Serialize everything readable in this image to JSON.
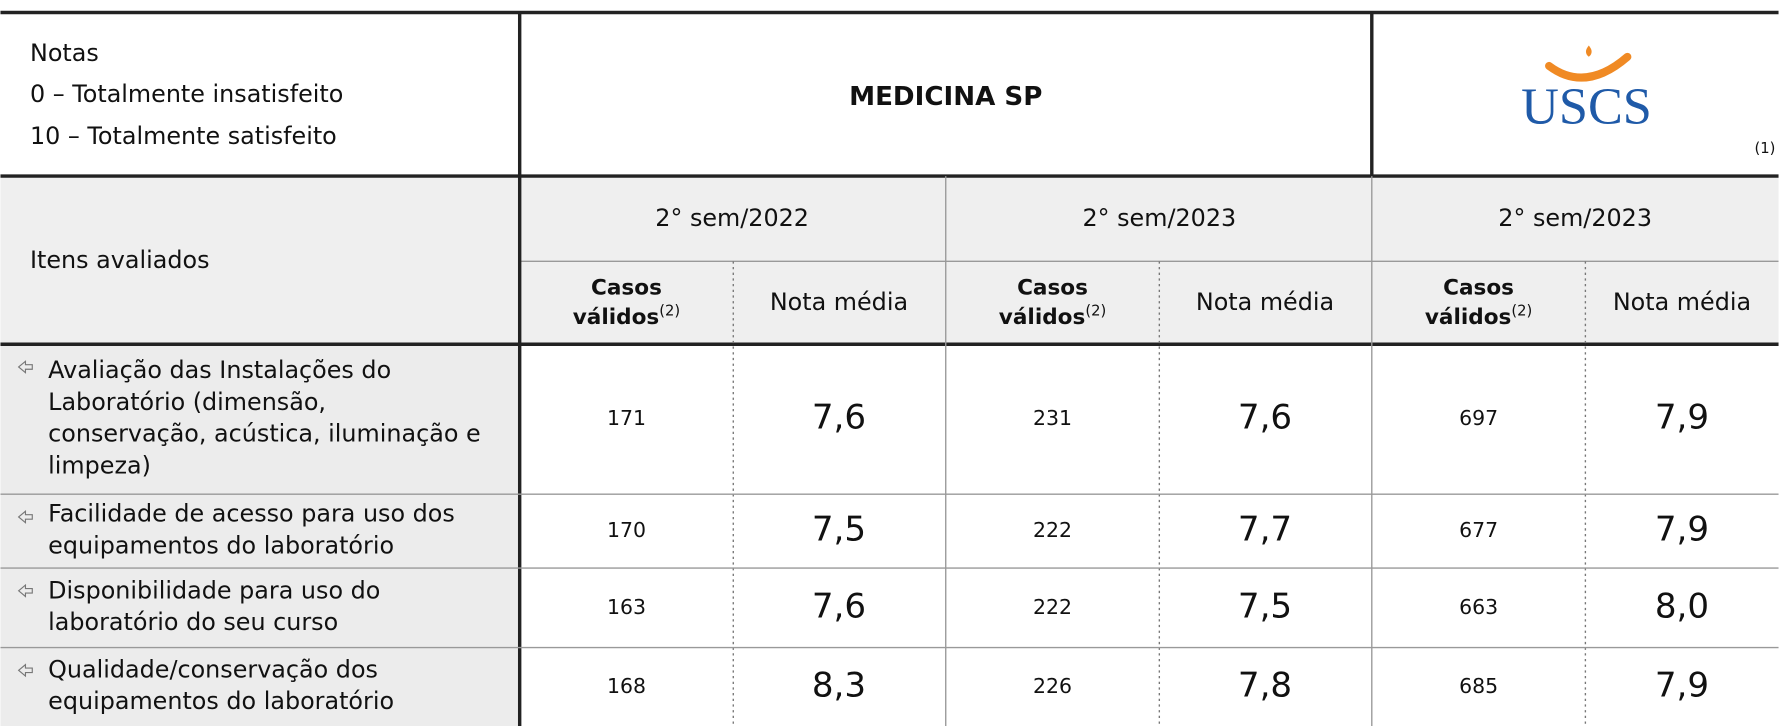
{
  "header": {
    "notes": [
      "Notas",
      "0 – Totalmente insatisfeito",
      "10 – Totalmente satisfeito"
    ],
    "title": "MEDICINA SP",
    "logo": "USCS",
    "logo_note": "(1)"
  },
  "table": {
    "row_header": "Itens avaliados",
    "periods": [
      "2° sem/2022",
      "2° sem/2023",
      "2° sem/2023"
    ],
    "cases_header": [
      "Casos",
      "válidos",
      "(2)"
    ],
    "mean_header": "Nota média",
    "rows": [
      {
        "item": [
          "Avaliação das Instalações do",
          "Laboratório (dimensão,",
          "conservação, acústica, iluminação e",
          "limpeza)"
        ],
        "values": [
          "171",
          "7,6",
          "231",
          "7,6",
          "697",
          "7,9"
        ]
      },
      {
        "item": [
          "Facilidade de acesso para uso dos",
          "equipamentos do laboratório"
        ],
        "values": [
          "170",
          "7,5",
          "222",
          "7,7",
          "677",
          "7,9"
        ]
      },
      {
        "item": [
          "Disponibilidade para uso do",
          "laboratório do seu curso"
        ],
        "values": [
          "163",
          "7,6",
          "222",
          "7,5",
          "663",
          "8,0"
        ]
      },
      {
        "item": [
          "Qualidade/conservação dos",
          "equipamentos do laboratório"
        ],
        "values": [
          "168",
          "8,3",
          "226",
          "7,8",
          "685",
          "7,9"
        ]
      }
    ]
  }
}
